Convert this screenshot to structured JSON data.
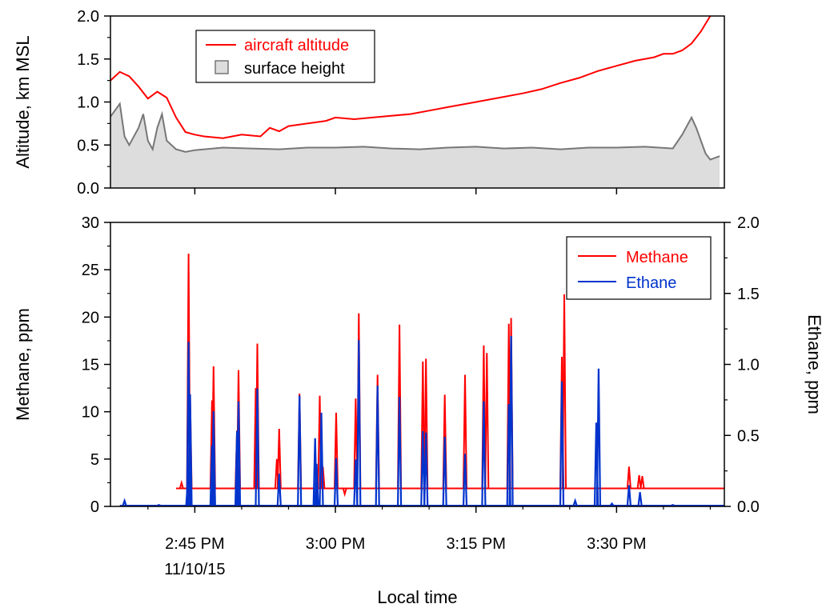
{
  "colors": {
    "aircraft_altitude": "#ff0000",
    "surface_height_line": "#777777",
    "surface_height_fill": "#dddddd",
    "methane": "#ff0000",
    "ethane": "#0033cc"
  },
  "chart_data": [
    {
      "type": "line",
      "panel": "top",
      "ylabel": "Altitude, km MSL",
      "ylim": [
        0,
        2.0
      ],
      "xlim": [
        "14:36:00",
        "15:41:30"
      ],
      "y_ticks": [
        "0.0",
        "0.5",
        "1.0",
        "1.5",
        "2.0"
      ],
      "grid": false,
      "legend": {
        "placement": "top-left",
        "entries": [
          "aircraft altitude",
          "surface height"
        ]
      },
      "series": [
        {
          "name": "aircraft altitude",
          "style": "line",
          "x": [
            "14:36:00",
            "14:37:00",
            "14:38:00",
            "14:39:00",
            "14:40:00",
            "14:41:00",
            "14:42:00",
            "14:43:00",
            "14:44:00",
            "14:45:00",
            "14:46:00",
            "14:48:00",
            "14:50:00",
            "14:52:00",
            "14:53:00",
            "14:54:00",
            "14:55:00",
            "14:57:00",
            "14:59:00",
            "15:00:00",
            "15:02:00",
            "15:05:00",
            "15:08:00",
            "15:10:00",
            "15:12:00",
            "15:15:00",
            "15:18:00",
            "15:20:00",
            "15:22:00",
            "15:24:00",
            "15:26:00",
            "15:28:00",
            "15:30:00",
            "15:32:00",
            "15:34:00",
            "15:35:00",
            "15:36:00",
            "15:37:00",
            "15:38:00",
            "15:39:00",
            "15:40:00"
          ],
          "y": [
            1.25,
            1.35,
            1.3,
            1.18,
            1.04,
            1.12,
            1.05,
            0.82,
            0.65,
            0.62,
            0.6,
            0.58,
            0.62,
            0.6,
            0.7,
            0.66,
            0.72,
            0.75,
            0.78,
            0.82,
            0.8,
            0.83,
            0.86,
            0.9,
            0.94,
            1.0,
            1.06,
            1.1,
            1.15,
            1.22,
            1.28,
            1.36,
            1.42,
            1.48,
            1.52,
            1.56,
            1.56,
            1.6,
            1.68,
            1.82,
            2.0
          ]
        },
        {
          "name": "surface height",
          "style": "area",
          "x": [
            "14:36:00",
            "14:37:00",
            "14:37:30",
            "14:38:00",
            "14:39:00",
            "14:39:30",
            "14:40:00",
            "14:40:30",
            "14:41:00",
            "14:41:30",
            "14:42:00",
            "14:43:00",
            "14:44:00",
            "14:45:00",
            "14:48:00",
            "14:51:00",
            "14:54:00",
            "14:57:00",
            "15:00:00",
            "15:03:00",
            "15:06:00",
            "15:09:00",
            "15:12:00",
            "15:15:00",
            "15:18:00",
            "15:21:00",
            "15:24:00",
            "15:27:00",
            "15:30:00",
            "15:33:00",
            "15:36:00",
            "15:37:00",
            "15:38:00",
            "15:38:30",
            "15:39:00",
            "15:39:30",
            "15:40:00",
            "15:41:00"
          ],
          "y": [
            0.83,
            0.98,
            0.6,
            0.5,
            0.7,
            0.86,
            0.55,
            0.45,
            0.7,
            0.86,
            0.55,
            0.45,
            0.42,
            0.44,
            0.47,
            0.46,
            0.45,
            0.47,
            0.47,
            0.48,
            0.46,
            0.45,
            0.47,
            0.48,
            0.46,
            0.47,
            0.45,
            0.47,
            0.47,
            0.48,
            0.46,
            0.62,
            0.82,
            0.7,
            0.55,
            0.4,
            0.33,
            0.37
          ]
        }
      ]
    },
    {
      "type": "line",
      "panel": "bottom",
      "xlabel": "Local time",
      "ylabel": "Methane, ppm",
      "ylabel_right": "Ethane, ppm",
      "ylim": [
        0,
        30
      ],
      "ylim_right": [
        0,
        2.0
      ],
      "xlim": [
        "14:36:00",
        "15:41:30"
      ],
      "x_ticks": [
        {
          "at": "14:45:00",
          "label": "2:45 PM",
          "sublabel": "11/10/15"
        },
        {
          "at": "15:00:00",
          "label": "3:00 PM",
          "sublabel": ""
        },
        {
          "at": "15:15:00",
          "label": "3:15 PM",
          "sublabel": ""
        },
        {
          "at": "15:30:00",
          "label": "3:30 PM",
          "sublabel": ""
        }
      ],
      "y_ticks": [
        "0",
        "5",
        "10",
        "15",
        "20",
        "25",
        "30"
      ],
      "y_ticks_right": [
        "0.0",
        "0.5",
        "1.0",
        "1.5",
        "2.0"
      ],
      "grid": false,
      "legend": {
        "placement": "top-right",
        "entries": [
          "Methane",
          "Ethane"
        ]
      },
      "series": [
        {
          "name": "Methane",
          "axis": "left",
          "baseline": 1.9,
          "peaks": [
            {
              "x": "14:43:35",
              "y": 2.5
            },
            {
              "x": "14:44:20",
              "y": 26.7
            },
            {
              "x": "14:44:30",
              "y": 11.8
            },
            {
              "x": "14:46:50",
              "y": 11.2
            },
            {
              "x": "14:47:00",
              "y": 14.8
            },
            {
              "x": "14:49:30",
              "y": 8.0
            },
            {
              "x": "14:49:40",
              "y": 14.4
            },
            {
              "x": "14:51:30",
              "y": 12.5
            },
            {
              "x": "14:51:40",
              "y": 17.2
            },
            {
              "x": "14:53:45",
              "y": 5.0
            },
            {
              "x": "14:54:00",
              "y": 8.2
            },
            {
              "x": "14:56:10",
              "y": 11.9
            },
            {
              "x": "14:58:20",
              "y": 11.7
            },
            {
              "x": "14:58:40",
              "y": 4.2
            },
            {
              "x": "15:00:05",
              "y": 9.9
            },
            {
              "x": "15:01:00",
              "y": 1.3
            },
            {
              "x": "15:02:10",
              "y": 11.4
            },
            {
              "x": "15:02:30",
              "y": 20.4
            },
            {
              "x": "15:04:30",
              "y": 13.9
            },
            {
              "x": "15:06:50",
              "y": 19.2
            },
            {
              "x": "15:09:20",
              "y": 15.3
            },
            {
              "x": "15:09:40",
              "y": 15.6
            },
            {
              "x": "15:11:40",
              "y": 11.8
            },
            {
              "x": "15:13:50",
              "y": 13.9
            },
            {
              "x": "15:15:50",
              "y": 17.0
            },
            {
              "x": "15:16:10",
              "y": 16.2
            },
            {
              "x": "15:18:30",
              "y": 19.3
            },
            {
              "x": "15:18:45",
              "y": 19.9
            },
            {
              "x": "15:24:10",
              "y": 15.8
            },
            {
              "x": "15:24:25",
              "y": 22.4
            },
            {
              "x": "15:31:20",
              "y": 4.2
            },
            {
              "x": "15:32:25",
              "y": 3.3
            },
            {
              "x": "15:32:45",
              "y": 3.2
            }
          ]
        },
        {
          "name": "Ethane",
          "axis": "right",
          "baseline": 0.0,
          "peaks": [
            {
              "x": "14:37:30",
              "y": 0.04
            },
            {
              "x": "14:41:10",
              "y": 0.01
            },
            {
              "x": "14:44:15",
              "y": 0.17
            },
            {
              "x": "14:44:20",
              "y": 1.16
            },
            {
              "x": "14:44:30",
              "y": 0.79
            },
            {
              "x": "14:46:50",
              "y": 0.43
            },
            {
              "x": "14:47:00",
              "y": 0.67
            },
            {
              "x": "14:49:30",
              "y": 0.53
            },
            {
              "x": "14:49:40",
              "y": 0.74
            },
            {
              "x": "14:51:40",
              "y": 0.83
            },
            {
              "x": "14:54:00",
              "y": 0.23
            },
            {
              "x": "14:56:10",
              "y": 0.78
            },
            {
              "x": "14:57:50",
              "y": 0.48
            },
            {
              "x": "14:58:00",
              "y": 0.3
            },
            {
              "x": "14:58:30",
              "y": 0.66
            },
            {
              "x": "15:00:05",
              "y": 0.34
            },
            {
              "x": "15:02:10",
              "y": 0.33
            },
            {
              "x": "15:02:30",
              "y": 1.17
            },
            {
              "x": "15:04:30",
              "y": 0.85
            },
            {
              "x": "15:06:50",
              "y": 0.77
            },
            {
              "x": "15:09:20",
              "y": 0.53
            },
            {
              "x": "15:09:40",
              "y": 0.52
            },
            {
              "x": "15:11:40",
              "y": 0.49
            },
            {
              "x": "15:13:50",
              "y": 0.37
            },
            {
              "x": "15:15:50",
              "y": 0.74
            },
            {
              "x": "15:18:30",
              "y": 0.72
            },
            {
              "x": "15:18:45",
              "y": 1.2
            },
            {
              "x": "15:24:10",
              "y": 0.88
            },
            {
              "x": "15:25:35",
              "y": 0.04
            },
            {
              "x": "15:27:50",
              "y": 0.59
            },
            {
              "x": "15:28:05",
              "y": 0.97
            },
            {
              "x": "15:29:30",
              "y": 0.02
            },
            {
              "x": "15:31:20",
              "y": 0.15
            },
            {
              "x": "15:32:30",
              "y": 0.1
            },
            {
              "x": "15:36:00",
              "y": 0.01
            }
          ]
        }
      ]
    }
  ]
}
